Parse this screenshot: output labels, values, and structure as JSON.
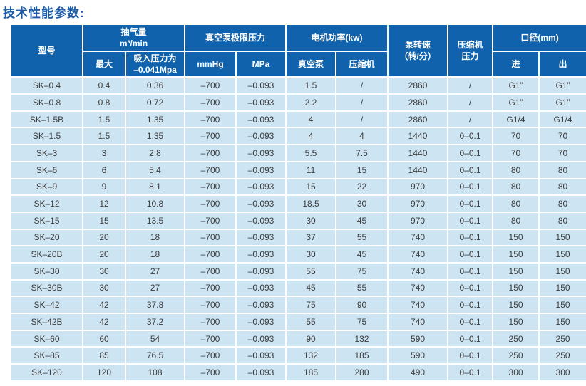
{
  "page": {
    "title": "技术性能参数:"
  },
  "colors": {
    "header_bg": "#0f62ab",
    "row_bg": "#cde4f3",
    "grid": "#ffffff",
    "title_text": "#1b5ba8",
    "cell_text": "#3c3c3c"
  },
  "chart_data": {
    "type": "table",
    "title": "技术性能参数",
    "header_groups": {
      "model": "型号",
      "pumping_capacity": "抽气量\nm³/min",
      "vacuum_limit_pressure": "真空泵极限压力",
      "motor_power": "电机功率(kw)",
      "pump_speed": "泵转速\n（转/分）",
      "compressor_pressure": "压缩机\n压力",
      "diameter": "口径(mm)"
    },
    "sub_headers": {
      "max": "最大",
      "suction": "吸入压力为\n–0.041Mpa",
      "mmhg": "mmHg",
      "mpa": "MPa",
      "vacuum_pump": "真空泵",
      "compressor": "压缩机",
      "inlet": "进",
      "outlet": "出"
    },
    "columns": [
      "型号",
      "抽气量最大",
      "抽气量(吸入压力为–0.041Mpa)",
      "极限压力mmHg",
      "极限压力MPa",
      "电机功率真空泵",
      "电机功率压缩机",
      "泵转速(转/分)",
      "压缩机压力",
      "口径进",
      "口径出"
    ],
    "rows": [
      [
        "SK–0.4",
        "0.4",
        "0.36",
        "–700",
        "–0.093",
        "1.5",
        "/",
        "2860",
        "/",
        "G1”",
        "G1”"
      ],
      [
        "SK–0.8",
        "0.8",
        "0.72",
        "–700",
        "–0.093",
        "2.2",
        "/",
        "2860",
        "/",
        "G1”",
        "G1”"
      ],
      [
        "SK–1.5B",
        "1.5",
        "1.35",
        "–700",
        "–0.093",
        "4",
        "/",
        "2860",
        "/",
        "G1/4",
        "G1/4"
      ],
      [
        "SK–1.5",
        "1.5",
        "1.35",
        "–700",
        "–0.093",
        "4",
        "4",
        "1440",
        "0–0.1",
        "70",
        "70"
      ],
      [
        "SK–3",
        "3",
        "2.8",
        "–700",
        "–0.093",
        "5.5",
        "7.5",
        "1440",
        "0–0.1",
        "70",
        "70"
      ],
      [
        "SK–6",
        "6",
        "5.4",
        "–700",
        "–0.093",
        "11",
        "15",
        "1440",
        "0–0.1",
        "80",
        "80"
      ],
      [
        "SK–9",
        "9",
        "8.1",
        "–700",
        "–0.093",
        "15",
        "22",
        "970",
        "0–0.1",
        "80",
        "80"
      ],
      [
        "SK–12",
        "12",
        "10.8",
        "–700",
        "–0.093",
        "18.5",
        "30",
        "970",
        "0–0.1",
        "80",
        "80"
      ],
      [
        "SK–15",
        "15",
        "13.5",
        "–700",
        "–0.093",
        "30",
        "45",
        "970",
        "0–0.1",
        "80",
        "80"
      ],
      [
        "SK–20",
        "20",
        "18",
        "–700",
        "–0.093",
        "37",
        "55",
        "740",
        "0–0.1",
        "150",
        "150"
      ],
      [
        "SK–20B",
        "20",
        "18",
        "–700",
        "–0.093",
        "30",
        "45",
        "740",
        "0–0.1",
        "150",
        "150"
      ],
      [
        "SK–30",
        "30",
        "27",
        "–700",
        "–0.093",
        "55",
        "75",
        "740",
        "0–0.1",
        "150",
        "150"
      ],
      [
        "SK–30B",
        "30",
        "27",
        "–700",
        "–0.093",
        "45",
        "55",
        "740",
        "0–0.1",
        "150",
        "150"
      ],
      [
        "SK–42",
        "42",
        "37.8",
        "–700",
        "–0.093",
        "75",
        "90",
        "740",
        "0–0.1",
        "150",
        "150"
      ],
      [
        "SK–42B",
        "42",
        "37.2",
        "–700",
        "–0.093",
        "55",
        "75",
        "740",
        "0–0.1",
        "150",
        "150"
      ],
      [
        "SK–60",
        "60",
        "54",
        "–700",
        "–0.093",
        "90",
        "132",
        "590",
        "0–0.1",
        "250",
        "250"
      ],
      [
        "SK–85",
        "85",
        "76.5",
        "–700",
        "–0.093",
        "132",
        "185",
        "590",
        "0–0.1",
        "250",
        "250"
      ],
      [
        "SK–120",
        "120",
        "108",
        "–700",
        "–0.093",
        "185",
        "280",
        "490",
        "0–0.1",
        "300",
        "300"
      ]
    ]
  }
}
